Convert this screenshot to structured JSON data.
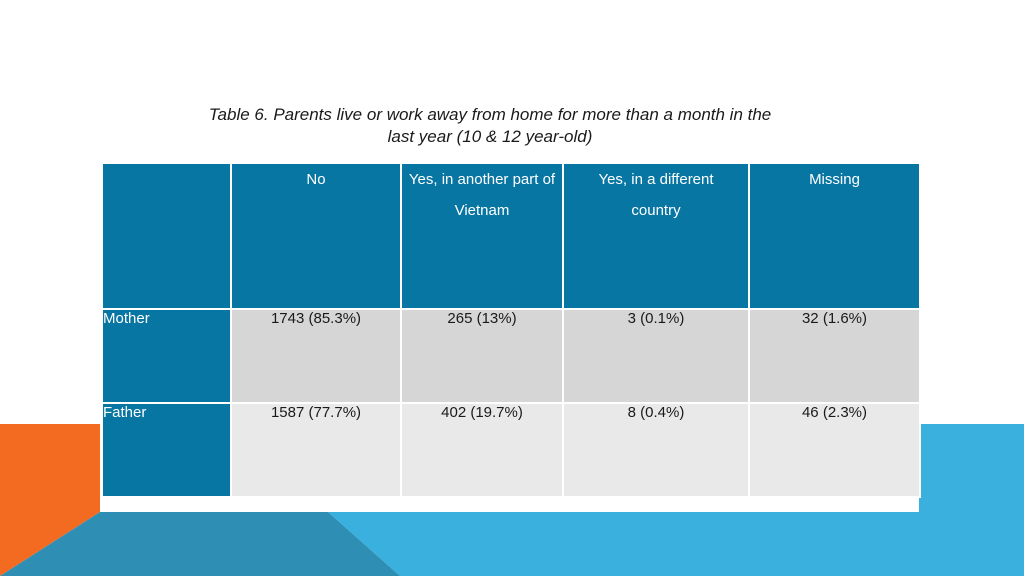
{
  "title": {
    "line1": "Table 6. Parents live or work away from home for more than a month in the",
    "line2": "last year (10 & 12 year-old)"
  },
  "table": {
    "headers": [
      "",
      "No",
      "Yes, in another part of Vietnam",
      "Yes, in a different country",
      "Missing"
    ],
    "rows": [
      {
        "label": "Mother",
        "cells": [
          "1743 (85.3%)",
          "265 (13%)",
          "3 (0.1%)",
          "32 (1.6%)"
        ]
      },
      {
        "label": "Father",
        "cells": [
          "1587 (77.7%)",
          "402 (19.7%)",
          "8 (0.4%)",
          "46 (2.3%)"
        ]
      }
    ]
  },
  "colors": {
    "header_bg": "#0876a3",
    "row1_bg": "#d6d6d7",
    "row2_bg": "#e9e9e9",
    "accent_orange": "#f26b21",
    "accent_light_blue": "#3ab0de",
    "accent_mid_blue": "#2f8eb4"
  }
}
